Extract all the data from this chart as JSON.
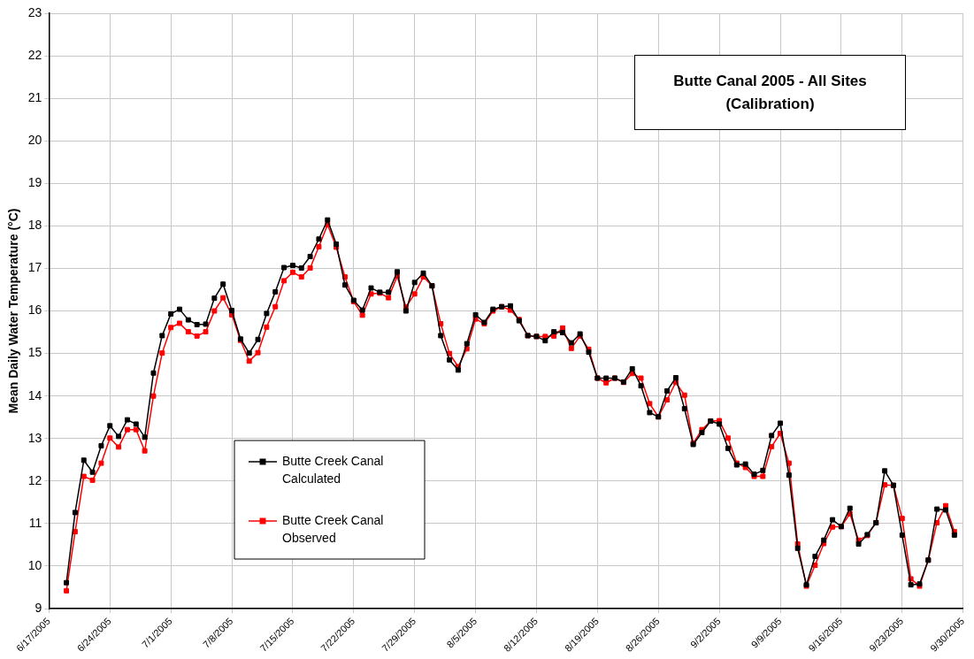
{
  "chart_data": {
    "type": "line",
    "title": "Butte Canal 2005 - All Sites\n(Calibration)",
    "ylabel": "Mean Daily Water Temperature (°C)",
    "x": [
      "2005-06-19",
      "2005-06-20",
      "2005-06-21",
      "2005-06-22",
      "2005-06-23",
      "2005-06-24",
      "2005-06-25",
      "2005-06-26",
      "2005-06-27",
      "2005-06-28",
      "2005-06-29",
      "2005-06-30",
      "2005-07-01",
      "2005-07-02",
      "2005-07-03",
      "2005-07-04",
      "2005-07-05",
      "2005-07-06",
      "2005-07-07",
      "2005-07-08",
      "2005-07-09",
      "2005-07-10",
      "2005-07-11",
      "2005-07-12",
      "2005-07-13",
      "2005-07-14",
      "2005-07-15",
      "2005-07-16",
      "2005-07-17",
      "2005-07-18",
      "2005-07-19",
      "2005-07-20",
      "2005-07-21",
      "2005-07-22",
      "2005-07-23",
      "2005-07-24",
      "2005-07-25",
      "2005-07-26",
      "2005-07-27",
      "2005-07-28",
      "2005-07-29",
      "2005-07-30",
      "2005-07-31",
      "2005-08-01",
      "2005-08-02",
      "2005-08-03",
      "2005-08-04",
      "2005-08-05",
      "2005-08-06",
      "2005-08-07",
      "2005-08-08",
      "2005-08-09",
      "2005-08-10",
      "2005-08-11",
      "2005-08-12",
      "2005-08-13",
      "2005-08-14",
      "2005-08-15",
      "2005-08-16",
      "2005-08-17",
      "2005-08-18",
      "2005-08-19",
      "2005-08-20",
      "2005-08-21",
      "2005-08-22",
      "2005-08-23",
      "2005-08-24",
      "2005-08-25",
      "2005-08-26",
      "2005-08-27",
      "2005-08-28",
      "2005-08-29",
      "2005-08-30",
      "2005-08-31",
      "2005-09-01",
      "2005-09-02",
      "2005-09-03",
      "2005-09-04",
      "2005-09-05",
      "2005-09-06",
      "2005-09-07",
      "2005-09-08",
      "2005-09-09",
      "2005-09-10",
      "2005-09-11",
      "2005-09-12",
      "2005-09-13",
      "2005-09-14",
      "2005-09-15",
      "2005-09-16",
      "2005-09-17",
      "2005-09-18",
      "2005-09-19",
      "2005-09-20",
      "2005-09-21",
      "2005-09-22",
      "2005-09-23",
      "2005-09-24",
      "2005-09-25",
      "2005-09-26",
      "2005-09-27",
      "2005-09-28",
      "2005-09-29"
    ],
    "series": [
      {
        "name": "Butte Creek Canal\nCalculated",
        "color": "#000000",
        "values": [
          9.61,
          11.26,
          12.49,
          12.21,
          12.83,
          13.3,
          13.05,
          13.44,
          13.34,
          13.03,
          14.54,
          15.42,
          15.93,
          16.04,
          15.79,
          15.68,
          15.69,
          16.3,
          16.63,
          16.01,
          15.34,
          15.01,
          15.33,
          15.94,
          16.45,
          17.02,
          17.07,
          17.01,
          17.28,
          17.69,
          18.14,
          17.57,
          16.61,
          16.25,
          16.02,
          16.54,
          16.44,
          16.44,
          16.92,
          16.0,
          16.67,
          16.89,
          16.59,
          15.42,
          14.85,
          14.61,
          15.23,
          15.91,
          15.73,
          16.04,
          16.1,
          16.12,
          15.77,
          15.42,
          15.4,
          15.3,
          15.51,
          15.49,
          15.25,
          15.46,
          15.03,
          14.42,
          14.42,
          14.42,
          14.33,
          14.64,
          14.24,
          13.61,
          13.51,
          14.12,
          14.43,
          13.7,
          12.86,
          13.14,
          13.41,
          13.34,
          12.77,
          12.38,
          12.4,
          12.16,
          12.25,
          13.07,
          13.36,
          12.14,
          10.42,
          9.56,
          10.23,
          10.61,
          11.09,
          10.93,
          11.36,
          10.52,
          10.74,
          11.02,
          12.24,
          11.9,
          10.73,
          9.56,
          9.58,
          10.14,
          11.34,
          11.32,
          10.73
        ]
      },
      {
        "name": "Butte Creek Canal\nObserved",
        "color": "#ff0000",
        "values": [
          9.42,
          10.81,
          12.11,
          12.02,
          12.42,
          13.01,
          12.8,
          13.21,
          13.21,
          12.71,
          14.0,
          15.01,
          15.61,
          15.71,
          15.51,
          15.41,
          15.51,
          16.0,
          16.31,
          15.91,
          15.31,
          14.82,
          15.02,
          15.62,
          16.1,
          16.71,
          16.91,
          16.8,
          17.01,
          17.51,
          18.03,
          17.5,
          16.8,
          16.22,
          15.9,
          16.4,
          16.42,
          16.31,
          16.82,
          16.09,
          16.4,
          16.8,
          16.59,
          15.7,
          15.0,
          14.69,
          15.11,
          15.81,
          15.7,
          16.0,
          16.1,
          16.02,
          15.8,
          15.42,
          15.4,
          15.4,
          15.41,
          15.6,
          15.12,
          15.41,
          15.1,
          14.42,
          14.31,
          14.42,
          14.32,
          14.53,
          14.42,
          13.82,
          13.51,
          13.91,
          14.32,
          14.02,
          12.89,
          13.21,
          13.41,
          13.42,
          13.01,
          12.42,
          12.32,
          12.11,
          12.11,
          12.81,
          13.12,
          12.42,
          10.52,
          9.53,
          10.02,
          10.53,
          10.92,
          10.93,
          11.23,
          10.61,
          10.72,
          11.02,
          11.91,
          11.9,
          11.12,
          9.7,
          9.53,
          10.14,
          11.02,
          11.42,
          10.81
        ]
      }
    ],
    "xlim": [
      "2005-06-17",
      "2005-09-30"
    ],
    "xticks": [
      {
        "value": "2005-06-17",
        "label": "6/17/2005"
      },
      {
        "value": "2005-06-24",
        "label": "6/24/2005"
      },
      {
        "value": "2005-07-01",
        "label": "7/1/2005"
      },
      {
        "value": "2005-07-08",
        "label": "7/8/2005"
      },
      {
        "value": "2005-07-15",
        "label": "7/15/2005"
      },
      {
        "value": "2005-07-22",
        "label": "7/22/2005"
      },
      {
        "value": "2005-07-29",
        "label": "7/29/2005"
      },
      {
        "value": "2005-08-05",
        "label": "8/5/2005"
      },
      {
        "value": "2005-08-12",
        "label": "8/12/2005"
      },
      {
        "value": "2005-08-19",
        "label": "8/19/2005"
      },
      {
        "value": "2005-08-26",
        "label": "8/26/2005"
      },
      {
        "value": "2005-09-02",
        "label": "9/2/2005"
      },
      {
        "value": "2005-09-09",
        "label": "9/9/2005"
      },
      {
        "value": "2005-09-16",
        "label": "9/16/2005"
      },
      {
        "value": "2005-09-23",
        "label": "9/23/2005"
      },
      {
        "value": "2005-09-30",
        "label": "9/30/2005"
      }
    ],
    "ylim": [
      9,
      23
    ],
    "yticks": [
      9,
      10,
      11,
      12,
      13,
      14,
      15,
      16,
      17,
      18,
      19,
      20,
      21,
      22,
      23
    ],
    "grid": true,
    "legend": "bottom left",
    "marker": "square",
    "line_style": "solid"
  }
}
